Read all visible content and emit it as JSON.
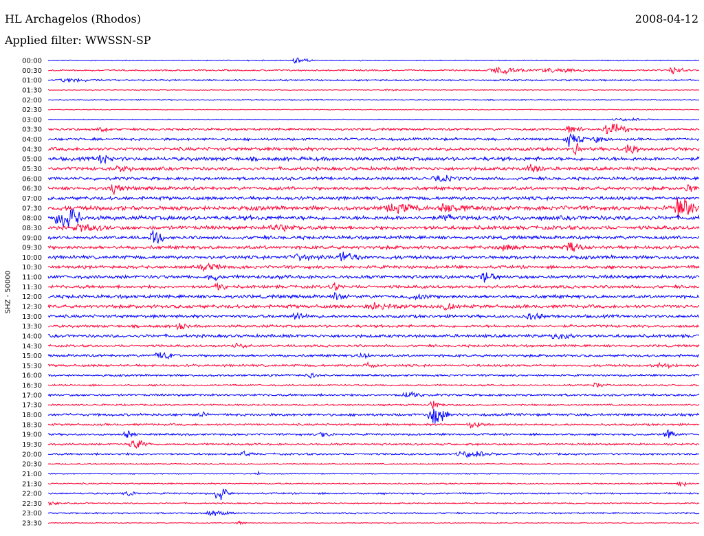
{
  "header": {
    "station": "HL Archagelos (Rhodos)",
    "date": "2008-04-12",
    "filter": "Applied filter: WWSSN-SP",
    "scale": "SHZ - 50000"
  },
  "colors": {
    "blue": "#0000ff",
    "red": "#ff0033"
  },
  "chart_data": {
    "type": "line",
    "title": "HL Archagelos (Rhodos)",
    "subtitle": "Applied filter: WWSSN-SP",
    "ylabel": "SHZ - 50000",
    "date": "2008-04-12",
    "row_interval_minutes": 30,
    "rows": [
      {
        "label": "00:00",
        "color": "blue",
        "noise": 0.6,
        "events": [
          [
            0.38,
            0.03,
            4
          ]
        ]
      },
      {
        "label": "00:30",
        "color": "red",
        "noise": 0.9,
        "events": [
          [
            0.69,
            0.06,
            4
          ],
          [
            0.77,
            0.08,
            2
          ],
          [
            0.96,
            0.03,
            4
          ]
        ]
      },
      {
        "label": "01:00",
        "color": "blue",
        "noise": 1.0,
        "events": [
          [
            0.03,
            0.06,
            1.5
          ]
        ]
      },
      {
        "label": "01:30",
        "color": "red",
        "noise": 0.5,
        "events": [
          [
            0.52,
            0.02,
            1.5
          ]
        ]
      },
      {
        "label": "02:00",
        "color": "blue",
        "noise": 0.7,
        "events": []
      },
      {
        "label": "02:30",
        "color": "red",
        "noise": 0.5,
        "events": []
      },
      {
        "label": "03:00",
        "color": "blue",
        "noise": 0.5,
        "events": [
          [
            0.88,
            0.06,
            1.5
          ]
        ]
      },
      {
        "label": "03:30",
        "color": "red",
        "noise": 1.4,
        "events": [
          [
            0.08,
            0.02,
            3
          ],
          [
            0.8,
            0.03,
            4
          ],
          [
            0.86,
            0.04,
            8
          ]
        ]
      },
      {
        "label": "04:00",
        "color": "blue",
        "noise": 1.5,
        "events": [
          [
            0.8,
            0.03,
            7
          ],
          [
            0.84,
            0.03,
            3
          ]
        ]
      },
      {
        "label": "04:30",
        "color": "red",
        "noise": 2.0,
        "events": [
          [
            0.81,
            0.01,
            12
          ],
          [
            0.89,
            0.02,
            8
          ]
        ]
      },
      {
        "label": "05:00",
        "color": "blue",
        "noise": 2.2,
        "events": [
          [
            0.08,
            0.02,
            7
          ]
        ]
      },
      {
        "label": "05:30",
        "color": "red",
        "noise": 2.0,
        "events": [
          [
            0.11,
            0.03,
            3
          ],
          [
            0.74,
            0.03,
            4
          ]
        ]
      },
      {
        "label": "06:00",
        "color": "blue",
        "noise": 1.8,
        "events": [
          [
            0.6,
            0.04,
            3
          ]
        ]
      },
      {
        "label": "06:30",
        "color": "red",
        "noise": 2.0,
        "events": [
          [
            0.1,
            0.02,
            5
          ],
          [
            0.98,
            0.02,
            4
          ]
        ]
      },
      {
        "label": "07:00",
        "color": "blue",
        "noise": 2.0,
        "events": []
      },
      {
        "label": "07:30",
        "color": "red",
        "noise": 2.5,
        "events": [
          [
            0.53,
            0.06,
            4
          ],
          [
            0.61,
            0.04,
            5
          ],
          [
            0.97,
            0.03,
            12
          ]
        ]
      },
      {
        "label": "08:00",
        "color": "blue",
        "noise": 2.5,
        "events": [
          [
            0.02,
            0.04,
            14
          ],
          [
            0.61,
            0.02,
            4
          ]
        ]
      },
      {
        "label": "08:30",
        "color": "red",
        "noise": 2.2,
        "events": [
          [
            0.05,
            0.05,
            4
          ],
          [
            0.35,
            0.05,
            3
          ]
        ]
      },
      {
        "label": "09:00",
        "color": "blue",
        "noise": 2.0,
        "events": [
          [
            0.16,
            0.02,
            11
          ]
        ]
      },
      {
        "label": "09:30",
        "color": "red",
        "noise": 2.0,
        "events": [
          [
            0.7,
            0.03,
            3
          ],
          [
            0.8,
            0.03,
            5
          ]
        ]
      },
      {
        "label": "10:00",
        "color": "blue",
        "noise": 2.0,
        "events": [
          [
            0.38,
            0.05,
            3
          ],
          [
            0.45,
            0.04,
            5
          ]
        ]
      },
      {
        "label": "10:30",
        "color": "red",
        "noise": 1.8,
        "events": [
          [
            0.24,
            0.04,
            3
          ]
        ]
      },
      {
        "label": "11:00",
        "color": "blue",
        "noise": 2.0,
        "events": [
          [
            0.25,
            0.02,
            4
          ],
          [
            0.67,
            0.02,
            8
          ]
        ]
      },
      {
        "label": "11:30",
        "color": "red",
        "noise": 1.8,
        "events": [
          [
            0.26,
            0.02,
            4
          ],
          [
            0.44,
            0.02,
            4
          ]
        ]
      },
      {
        "label": "12:00",
        "color": "blue",
        "noise": 2.0,
        "events": [
          [
            0.44,
            0.03,
            3
          ],
          [
            0.56,
            0.03,
            3
          ]
        ]
      },
      {
        "label": "12:30",
        "color": "red",
        "noise": 2.0,
        "events": [
          [
            0.5,
            0.06,
            3
          ],
          [
            0.61,
            0.02,
            4
          ]
        ]
      },
      {
        "label": "13:00",
        "color": "blue",
        "noise": 1.8,
        "events": [
          [
            0.38,
            0.03,
            4
          ],
          [
            0.74,
            0.03,
            3
          ]
        ]
      },
      {
        "label": "13:30",
        "color": "red",
        "noise": 1.6,
        "events": [
          [
            0.2,
            0.02,
            3
          ]
        ]
      },
      {
        "label": "14:00",
        "color": "blue",
        "noise": 1.8,
        "events": [
          [
            0.78,
            0.04,
            3
          ]
        ]
      },
      {
        "label": "14:30",
        "color": "red",
        "noise": 1.4,
        "events": [
          [
            0.29,
            0.02,
            3
          ]
        ]
      },
      {
        "label": "15:00",
        "color": "blue",
        "noise": 1.5,
        "events": [
          [
            0.17,
            0.03,
            4
          ],
          [
            0.48,
            0.02,
            3
          ]
        ]
      },
      {
        "label": "15:30",
        "color": "red",
        "noise": 1.4,
        "events": [
          [
            0.49,
            0.02,
            3
          ],
          [
            0.94,
            0.03,
            3
          ]
        ]
      },
      {
        "label": "16:00",
        "color": "blue",
        "noise": 1.2,
        "events": [
          [
            0.4,
            0.02,
            3
          ]
        ]
      },
      {
        "label": "16:30",
        "color": "red",
        "noise": 1.0,
        "events": [
          [
            0.84,
            0.02,
            3
          ]
        ]
      },
      {
        "label": "17:00",
        "color": "blue",
        "noise": 1.3,
        "events": [
          [
            0.55,
            0.04,
            3
          ]
        ]
      },
      {
        "label": "17:30",
        "color": "red",
        "noise": 1.0,
        "events": [
          [
            0.59,
            0.02,
            5
          ]
        ]
      },
      {
        "label": "18:00",
        "color": "blue",
        "noise": 1.5,
        "events": [
          [
            0.59,
            0.03,
            13
          ],
          [
            0.23,
            0.02,
            3
          ]
        ]
      },
      {
        "label": "18:30",
        "color": "red",
        "noise": 1.2,
        "events": [
          [
            0.65,
            0.03,
            4
          ]
        ]
      },
      {
        "label": "19:00",
        "color": "blue",
        "noise": 1.2,
        "events": [
          [
            0.12,
            0.02,
            4
          ],
          [
            0.42,
            0.02,
            3
          ],
          [
            0.95,
            0.02,
            5
          ]
        ]
      },
      {
        "label": "19:30",
        "color": "red",
        "noise": 1.2,
        "events": [
          [
            0.13,
            0.03,
            6
          ]
        ]
      },
      {
        "label": "20:00",
        "color": "blue",
        "noise": 1.2,
        "events": [
          [
            0.64,
            0.05,
            4
          ],
          [
            0.3,
            0.02,
            3
          ]
        ]
      },
      {
        "label": "20:30",
        "color": "red",
        "noise": 0.6,
        "events": []
      },
      {
        "label": "21:00",
        "color": "blue",
        "noise": 0.6,
        "events": [
          [
            0.32,
            0.02,
            2
          ]
        ]
      },
      {
        "label": "21:30",
        "color": "red",
        "noise": 0.8,
        "events": [
          [
            0.97,
            0.02,
            3
          ]
        ]
      },
      {
        "label": "22:00",
        "color": "blue",
        "noise": 1.0,
        "events": [
          [
            0.26,
            0.02,
            10
          ],
          [
            0.12,
            0.02,
            3
          ]
        ]
      },
      {
        "label": "22:30",
        "color": "red",
        "noise": 0.8,
        "events": [
          [
            0.0,
            0.02,
            3
          ]
        ]
      },
      {
        "label": "23:00",
        "color": "blue",
        "noise": 0.9,
        "events": [
          [
            0.25,
            0.04,
            3
          ]
        ]
      },
      {
        "label": "23:30",
        "color": "red",
        "noise": 0.5,
        "events": [
          [
            0.29,
            0.02,
            2
          ]
        ]
      }
    ]
  }
}
